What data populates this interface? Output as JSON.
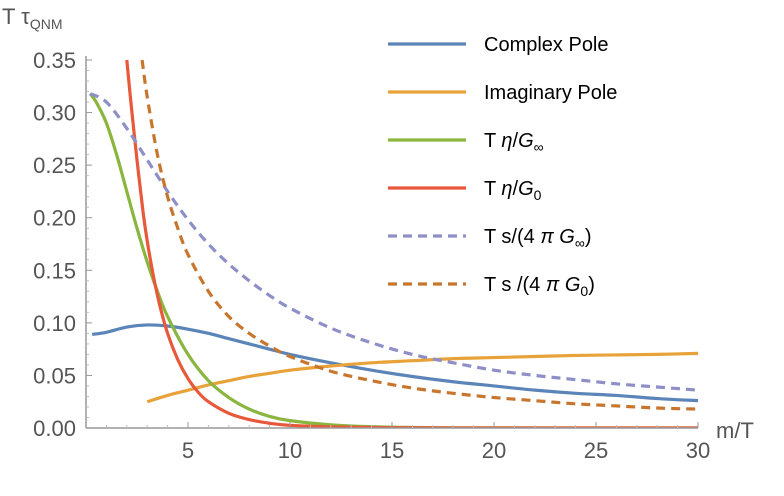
{
  "chart_data": {
    "type": "line",
    "xlabel": "m/T",
    "ylabel": "T τ_QNM",
    "ylabel_parts": {
      "base": "T τ",
      "sub": "QNM"
    },
    "xlim": [
      0,
      30
    ],
    "ylim": [
      0,
      0.35
    ],
    "x_ticks": [
      5,
      10,
      15,
      20,
      25,
      30
    ],
    "x_tick_labels": [
      "5",
      "10",
      "15",
      "20",
      "25",
      "30"
    ],
    "y_ticks": [
      0.0,
      0.05,
      0.1,
      0.15,
      0.2,
      0.25,
      0.3,
      0.35
    ],
    "y_tick_labels": [
      "0.00",
      "0.05",
      "0.10",
      "0.15",
      "0.20",
      "0.25",
      "0.30",
      "0.35"
    ],
    "grid": false,
    "legend_position": "top-right",
    "series": [
      {
        "name": "Complex Pole",
        "legend": {
          "parts": [
            {
              "t": "Complex Pole"
            }
          ]
        },
        "color": "#5b84b8",
        "dashed": false,
        "x": [
          0.3,
          1,
          2,
          3,
          4,
          5,
          6,
          7,
          8,
          9,
          10,
          12,
          14,
          16,
          18,
          20,
          22,
          24,
          26,
          28,
          30
        ],
        "y": [
          0.089,
          0.091,
          0.096,
          0.098,
          0.097,
          0.094,
          0.09,
          0.085,
          0.08,
          0.075,
          0.07,
          0.062,
          0.055,
          0.049,
          0.044,
          0.04,
          0.036,
          0.033,
          0.031,
          0.028,
          0.026
        ]
      },
      {
        "name": "Imaginary Pole",
        "legend": {
          "parts": [
            {
              "t": "Imaginary Pole"
            }
          ]
        },
        "color": "#e8a23a",
        "dashed": false,
        "x": [
          3,
          4,
          5,
          6,
          7,
          8,
          9,
          10,
          12,
          14,
          16,
          18,
          20,
          22,
          24,
          26,
          28,
          30
        ],
        "y": [
          0.025,
          0.031,
          0.036,
          0.041,
          0.045,
          0.049,
          0.052,
          0.055,
          0.059,
          0.062,
          0.064,
          0.066,
          0.067,
          0.068,
          0.069,
          0.0695,
          0.07,
          0.071
        ]
      },
      {
        "name": "T η/G∞",
        "legend": {
          "parts": [
            {
              "t": "T "
            },
            {
              "t": "η",
              "i": true
            },
            {
              "t": "/"
            },
            {
              "t": "G",
              "i": true
            },
            {
              "t": "∞",
              "sub": true
            }
          ]
        },
        "color": "#8ab53e",
        "dashed": false,
        "x": [
          0.2,
          0.5,
          1,
          1.5,
          2,
          2.5,
          3,
          3.5,
          4,
          5,
          6,
          7,
          8,
          9,
          10,
          12,
          14,
          16,
          18,
          20,
          25,
          30
        ],
        "y": [
          0.318,
          0.31,
          0.29,
          0.26,
          0.225,
          0.19,
          0.158,
          0.13,
          0.106,
          0.07,
          0.045,
          0.029,
          0.018,
          0.011,
          0.007,
          0.003,
          0.0012,
          0.0005,
          0.0002,
          0.0001,
          0.0,
          0.0
        ]
      },
      {
        "name": "T η/G0",
        "legend": {
          "parts": [
            {
              "t": "T "
            },
            {
              "t": "η",
              "i": true
            },
            {
              "t": "/"
            },
            {
              "t": "G",
              "i": true
            },
            {
              "t": "0",
              "sub": true
            }
          ]
        },
        "color": "#e8583a",
        "dashed": false,
        "x": [
          2,
          2.2,
          2.5,
          2.8,
          3,
          3.3,
          3.6,
          4,
          4.5,
          5,
          5.5,
          6,
          7,
          8,
          9,
          10,
          12,
          15,
          20,
          25,
          30
        ],
        "y": [
          0.35,
          0.31,
          0.255,
          0.205,
          0.178,
          0.145,
          0.118,
          0.09,
          0.065,
          0.047,
          0.034,
          0.025,
          0.014,
          0.008,
          0.0045,
          0.0025,
          0.001,
          0.0003,
          0.0,
          0.0,
          0.0
        ]
      },
      {
        "name": "T s/(4 π G∞)",
        "legend": {
          "parts": [
            {
              "t": "T s/(4 "
            },
            {
              "t": "π",
              "i": true
            },
            {
              "t": " "
            },
            {
              "t": "G",
              "i": true
            },
            {
              "t": "∞",
              "sub": true
            },
            {
              "t": ")"
            }
          ]
        },
        "color": "#8f8fc8",
        "dashed": true,
        "x": [
          0.2,
          1,
          2,
          3,
          4,
          5,
          6,
          7,
          8,
          9,
          10,
          12,
          14,
          16,
          18,
          20,
          22,
          24,
          26,
          28,
          30
        ],
        "y": [
          0.318,
          0.31,
          0.285,
          0.255,
          0.225,
          0.198,
          0.175,
          0.156,
          0.14,
          0.126,
          0.114,
          0.095,
          0.081,
          0.07,
          0.062,
          0.055,
          0.05,
          0.046,
          0.042,
          0.039,
          0.036
        ]
      },
      {
        "name": "T s/(4 π G0)",
        "legend": {
          "parts": [
            {
              "t": "T s /(4 "
            },
            {
              "t": "π",
              "i": true
            },
            {
              "t": " "
            },
            {
              "t": "G",
              "i": true
            },
            {
              "t": "0",
              "sub": true
            },
            {
              "t": ")"
            }
          ]
        },
        "color": "#c8762e",
        "dashed": true,
        "x": [
          2.75,
          3,
          3.5,
          4,
          4.5,
          5,
          6,
          7,
          8,
          9,
          10,
          12,
          14,
          16,
          18,
          20,
          22,
          24,
          26,
          28,
          30
        ],
        "y": [
          0.35,
          0.315,
          0.26,
          0.22,
          0.19,
          0.165,
          0.13,
          0.106,
          0.09,
          0.078,
          0.068,
          0.054,
          0.045,
          0.038,
          0.033,
          0.029,
          0.026,
          0.023,
          0.021,
          0.019,
          0.018
        ]
      }
    ]
  }
}
